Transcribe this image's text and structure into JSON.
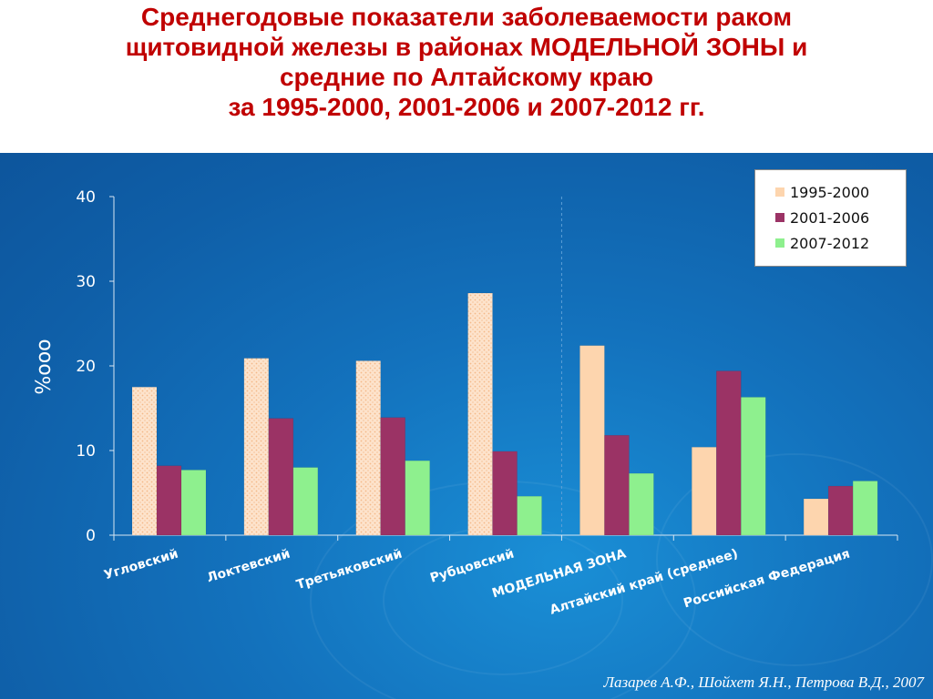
{
  "title": {
    "lines": [
      "Среднегодовые показатели заболеваемости  раком",
      "щитовидной железы в районах МОДЕЛЬНОЙ ЗОНЫ и",
      "средние по Алтайскому краю",
      "за 1995-2000, 2001-2006 и 2007-2012 гг."
    ]
  },
  "source": "Лазарев А.Ф., Шойхет Я.Н., Петрова В.Д., 2007",
  "colors": {
    "title": "#c00000",
    "background": "#1372bd",
    "series": [
      "#fdd5ae",
      "#9b3365",
      "#8ef08e"
    ]
  },
  "chart_data": {
    "type": "bar",
    "ylabel": "%ооо",
    "ylim": [
      0,
      40
    ],
    "yticks": [
      0,
      10,
      20,
      30,
      40
    ],
    "legend": "top-right",
    "grid": false,
    "categories": [
      "Угловский",
      "Локтевский",
      "Третьяковский",
      "Рубцовский",
      "МОДЕЛЬНАЯ ЗОНА",
      "Алтайский край (среднее)",
      "Российская Федерация"
    ],
    "series": [
      {
        "name": "1995-2000",
        "values": [
          17.5,
          20.9,
          20.6,
          28.6,
          22.4,
          10.4,
          4.3
        ]
      },
      {
        "name": "2001-2006",
        "values": [
          8.2,
          13.8,
          13.9,
          9.9,
          11.8,
          19.4,
          5.8
        ]
      },
      {
        "name": "2007-2012",
        "values": [
          7.7,
          8.0,
          8.8,
          4.6,
          7.3,
          16.3,
          6.4
        ]
      }
    ]
  }
}
